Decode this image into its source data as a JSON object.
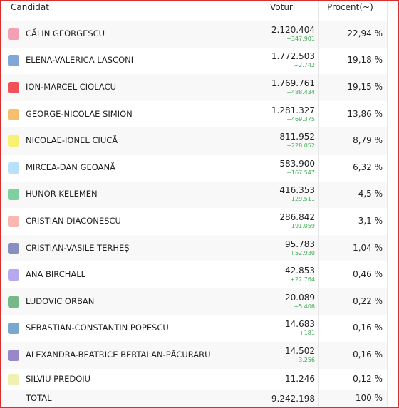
{
  "header": {
    "candidate": "Candidat",
    "votes": "Voturi",
    "percent": "Procent(~)"
  },
  "rows": [
    {
      "name": "CĂLIN GEORGESCU",
      "votes": "2.120.404",
      "change": "+347.901",
      "percent": "22,94 %",
      "color": "#f4a0b4"
    },
    {
      "name": "ELENA-VALERICA LASCONI",
      "votes": "1.772.503",
      "change": "+2.742",
      "percent": "19,18 %",
      "color": "#7fa8d8"
    },
    {
      "name": "ION-MARCEL CIOLACU",
      "votes": "1.769.761",
      "change": "+488.434",
      "percent": "19,15 %",
      "color": "#f0505a"
    },
    {
      "name": "GEORGE-NICOLAE SIMION",
      "votes": "1.281.327",
      "change": "+469.375",
      "percent": "13,86 %",
      "color": "#f8be70"
    },
    {
      "name": "NICOLAE-IONEL CIUCĂ",
      "votes": "811.952",
      "change": "+228.052",
      "percent": "8,79 %",
      "color": "#f8f070"
    },
    {
      "name": "MIRCEA-DAN GEOANĂ",
      "votes": "583.900",
      "change": "+167.547",
      "percent": "6,32 %",
      "color": "#b8e0f8"
    },
    {
      "name": "HUNOR KELEMEN",
      "votes": "416.353",
      "change": "+129.511",
      "percent": "4,5 %",
      "color": "#7fd0a0"
    },
    {
      "name": "CRISTIAN DIACONESCU",
      "votes": "286.842",
      "change": "+191.059",
      "percent": "3,1 %",
      "color": "#f8b8b0"
    },
    {
      "name": "CRISTIAN-VASILE TERHEȘ",
      "votes": "95.783",
      "change": "+52.930",
      "percent": "1,04 %",
      "color": "#8890c0"
    },
    {
      "name": "ANA BIRCHALL",
      "votes": "42.853",
      "change": "+22.764",
      "percent": "0,46 %",
      "color": "#b8a8f0"
    },
    {
      "name": "LUDOVIC ORBAN",
      "votes": "20.089",
      "change": "+5.406",
      "percent": "0,22 %",
      "color": "#78b888"
    },
    {
      "name": "SEBASTIAN-CONSTANTIN POPESCU",
      "votes": "14.683",
      "change": "+181",
      "percent": "0,16 %",
      "color": "#78a8d0"
    },
    {
      "name": "ALEXANDRA-BEATRICE BERTALAN-PĂCURARU",
      "votes": "14.502",
      "change": "+3.256",
      "percent": "0,16 %",
      "color": "#9888c8"
    },
    {
      "name": "SILVIU PREDOIU",
      "votes": "11.246",
      "percent": "0,12 %",
      "color": "#f0f0b0"
    }
  ],
  "total": {
    "label": "TOTAL",
    "votes": "9.242.198",
    "percent": "100 %"
  }
}
